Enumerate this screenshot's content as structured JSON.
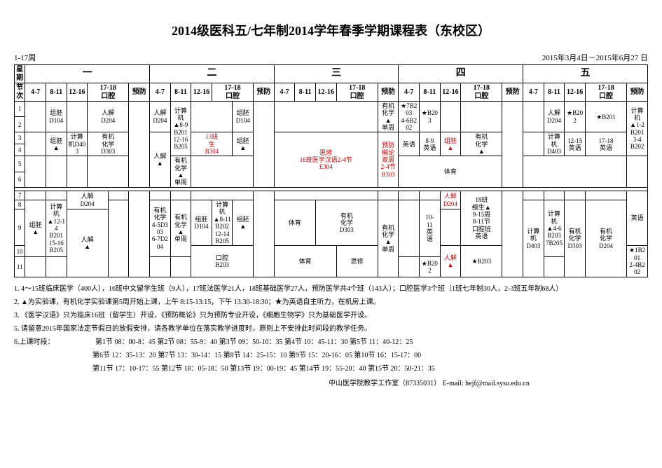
{
  "title": "2014级医科五/七年制2014学年春季学期课程表（东校区）",
  "weeks_label": "1-17周",
  "date_range": "2015年3月4日－2015年6月27 日",
  "header": {
    "weekday_label": "星期",
    "period_label": "节次",
    "days": [
      "一",
      "二",
      "三",
      "四",
      "五"
    ],
    "slots": [
      "4-7",
      "8-11",
      "12-16",
      "17-18\n口腔",
      "预防"
    ]
  },
  "periods_upper": [
    "1",
    "2",
    "3",
    "4",
    "5",
    "6"
  ],
  "periods_lower": [
    "7",
    "8",
    "9",
    "10",
    "11"
  ],
  "cells": {
    "d1_s1_r1_2": "组胚\nD104",
    "d1_s1_r3_4": "组胚\n▲",
    "d1_s2_r1_2": "计算\n机D403",
    "d1_s2_r3_4": "",
    "d1_s3_r1_2": "人解\nD204",
    "d1_s3_r3_4": "有机\n化学\nD303",
    "d1_s4_r1_6": "",
    "d1_s5_r1_6": "",
    "d2_s1_r1_2": "人解\nD204",
    "d2_s1_r3_6": "人解\n▲",
    "d2_s2_r1_2": "计算机\n▲8-9\nB201\n12-16\nB205",
    "d2_s2_r3_6": "有机\n化学\n▲\n单周",
    "d2_s3_r1_2": "组胚\nD104",
    "d2_s3_r3_4": "13班\n生\nB304",
    "d2_s3_r5_6": "组胚\n▲",
    "d2_s4_r1_6": "",
    "d2_s5_r1_6": "",
    "d3_all_r1_2": "",
    "d3_all_r3_6": "思修\n16班医学汉语2-4节\nE304",
    "d3_s5_r1_2": "有机\n化学\n▲\n单周",
    "d3_s5_r3_6": "预防\n概论\n双周\n2-4节\nB303",
    "d4_s1_r1_2": "★7B203\n4-6B202",
    "d4_s1_r3_6": "英语",
    "d4_s2_r1_2": "★B203",
    "d4_s2_r3_4": "8-9\n英语",
    "d4_s3_r1_2": "",
    "d4_s3_r3_4": "组胚\n▲",
    "d4_s4_r1_2": "",
    "d4_s4_r3_4": "有机\n化学\n▲",
    "d4_s5_r1_6": "",
    "d4_s1_r5_6": "体育",
    "d5_s1_r1_2": "人解\nD204",
    "d5_s1_r3_4": "计算\n机\nD403",
    "d5_s2_r1_2": "★B202",
    "d5_s2_r3_4": "12-15\n英语",
    "d5_s3_r1_2": "★B201",
    "d5_s3_r3_4": "17-18\n英语",
    "d5_s4_r1_6": "",
    "d5_s5_r1_2": "计算机\n▲1-2\nB201\n3-4\nB202",
    "d5_s5_r3_6": "",
    "L_d1_s1_r8_10": "组胚\n▲",
    "L_d1_s2_r7": "",
    "L_d1_s2_r8_10": "计算机\n▲12-14\nB201\n15-16\nB205",
    "L_d1_s3_r7_8": "人解\nD204",
    "L_d1_s3_r9_11": "人解\n▲",
    "L_d1_s4_r7_11": "",
    "L_d1_s5_r7_11": "",
    "L_d2_s1_r8_10": "有机\n化学\n4-5D303\n6-7D204",
    "L_d2_s2_r8_10": "有机\n化学\n▲\n单周",
    "L_d2_s3_r8_9": "组胚\nD104",
    "L_d2_s3_r10": "口腔\nB203",
    "L_d2_s4_r8_9": "计算机\n▲8-11\nB202\n12-14\nB205",
    "L_d2_s5_r8_9": "组胚\n▲",
    "L_d3_s12_r8_9": "体育",
    "L_d3_s34_r8_9": "有机\n化学\nD303",
    "L_d3_s12_r10_11": "体育",
    "L_d3_s34_r10_11": "思修",
    "L_d3_s5_r8_11": "有机\n化学▲\n单周",
    "L_d4_s1_r8_10": "10-\n11\n英\n语",
    "L_d4_s2_r7_8": "人解\nD204",
    "L_d4_s2_r9": "",
    "L_d4_s2_r10_11": "★B202",
    "L_d4_s2b_r10_11": "人解\n▲",
    "L_d4_s3_r7_9": "18班\n细生▲\n9-15周\n8-11节\n口腔班\n英语",
    "L_d4_s3_r10_11": "★B203",
    "L_d4_s4_r8_11": "计算\n机\nD403",
    "L_d4_s5_r7_11": "",
    "L_d5_s1_r8_10": "计算机\n▲4-6\nB203\n7B205",
    "L_d5_s2_r8_11": "有机\n化学\nD303",
    "L_d5_s3_r8_11": "有机\n化学\nD204",
    "L_d5_s4_r8_11": "组胚\n▲",
    "L_d5_s5_r7_9": "英语",
    "L_d5_s5_r10_11": "★1B201\n2-4B202"
  },
  "notes": [
    "1. 4～15班临床医学（400人），16班中文留学生班（9人），17班法医学21人，18班基础医学27人，预防医学共4个班（143人）；口腔医学3个班（1班七年制30人，2-3班五年制68人）",
    "2. ▲为实验课，有机化学实验课第5周开始上课，上午 8:15-13:15，下午 13:30-18:30；★为英语自主听力，在机房上课。",
    "3. 《医学汉语》只为临床16班（留学生）开设，《预防概论》只为预防专业开设，《细胞生物学》只为基础医学开设。",
    "5. 请留意2015年国家法定节假日的放假安排，请各教学单位在落实教学进度时，原则上不安排此时间段的教学任务。"
  ],
  "note_times_label": "6.上课时段：",
  "time_lines": [
    "第1节 08：00-8：45      第2节 08：55-9：40       第3节 09：50-10：35      第4节 10：45-11：30       第5节 11：40-12：25",
    "第6节 12：35-13：20     第7节 13：30-14：15      第8节 14：25-15：10      第9节 15：20-16：05       第10节 16：15-17：00",
    "第11节 17：10-17：55    第12节 18：05-18：50     第13节 19：00-19：45     第14节 19：55-20：40      第15节 20：50-21：35"
  ],
  "footer": "中山医学院教学工作室（87335031）   E-mail: hejf@mail.sysu.edu.cn"
}
